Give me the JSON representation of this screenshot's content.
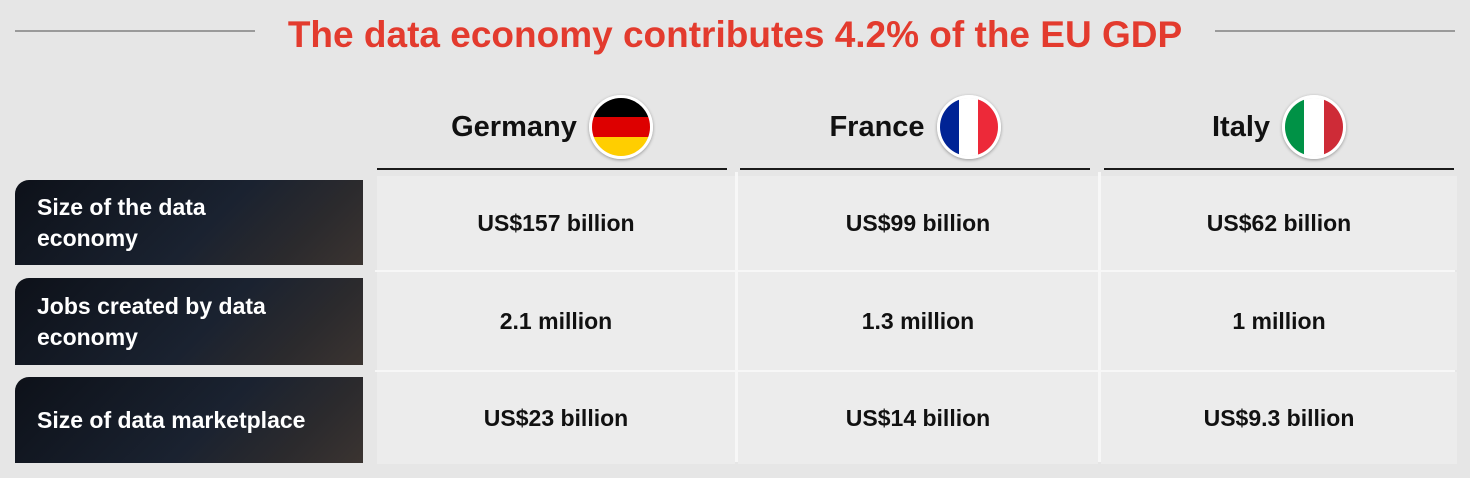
{
  "title": "The data economy contributes 4.2% of the EU GDP",
  "columns": [
    {
      "name": "Germany",
      "flag": "germany-flag-icon",
      "flag_colors": [
        "#000000",
        "#dd0000",
        "#ffce00"
      ]
    },
    {
      "name": "France",
      "flag": "france-flag-icon",
      "flag_colors": [
        "#002395",
        "#ffffff",
        "#ed2939"
      ]
    },
    {
      "name": "Italy",
      "flag": "italy-flag-icon",
      "flag_colors": [
        "#009246",
        "#ffffff",
        "#ce2b37"
      ]
    }
  ],
  "rows": [
    {
      "label": "Size of the data economy",
      "values": [
        "US$157 billion",
        "US$99 billion",
        "US$62 billion"
      ]
    },
    {
      "label": "Jobs created by data economy",
      "values": [
        "2.1 million",
        "1.3 million",
        "1 million"
      ]
    },
    {
      "label": "Size of data marketplace",
      "values": [
        "US$23 billion",
        "US$14 billion",
        "US$9.3 billion"
      ]
    }
  ],
  "colors": {
    "title": "#e33b2e",
    "label_bg": "#111826",
    "page_bg": "#e6e6e6"
  }
}
